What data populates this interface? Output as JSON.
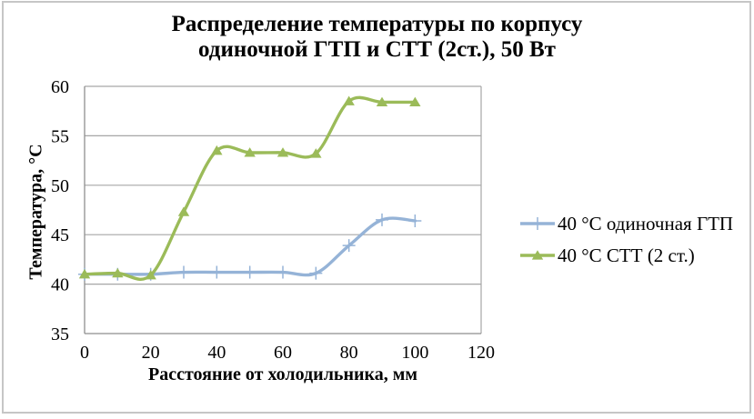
{
  "title": {
    "lines": [
      "Распределение температуры по корпусу",
      "одиночной ГТП и СТТ (2ст.), 50 Вт"
    ]
  },
  "chart_data": {
    "type": "line",
    "smoothed": true,
    "x": [
      0,
      10,
      20,
      30,
      40,
      50,
      60,
      70,
      80,
      90,
      100
    ],
    "series": [
      {
        "name": "40 °С одиночная ГТП",
        "color": "#95B3D7",
        "marker": "plus",
        "values": [
          41.0,
          41.0,
          41.0,
          41.2,
          41.2,
          41.2,
          41.2,
          41.1,
          43.9,
          46.5,
          46.4
        ]
      },
      {
        "name": "40 °С СТТ (2 ст.)",
        "color": "#9BBB59",
        "marker": "triangle",
        "values": [
          41.0,
          41.1,
          40.9,
          47.3,
          53.5,
          53.3,
          53.3,
          53.2,
          58.5,
          58.4,
          58.4
        ]
      }
    ],
    "xlabel": "Расстояние от холодильника, мм",
    "ylabel": "Температура, °С",
    "xlim": [
      0,
      120
    ],
    "ylim": [
      35,
      60
    ],
    "x_ticks": [
      0,
      20,
      40,
      60,
      80,
      100,
      120
    ],
    "y_ticks": [
      35,
      40,
      45,
      50,
      55,
      60
    ],
    "grid": true,
    "legend_position": "right"
  },
  "colors": {
    "grid": "#A6A6A6",
    "axis": "#8E8E8E",
    "frame": "#C6C6C6",
    "text": "#000000",
    "background": "#FFFFFF"
  }
}
